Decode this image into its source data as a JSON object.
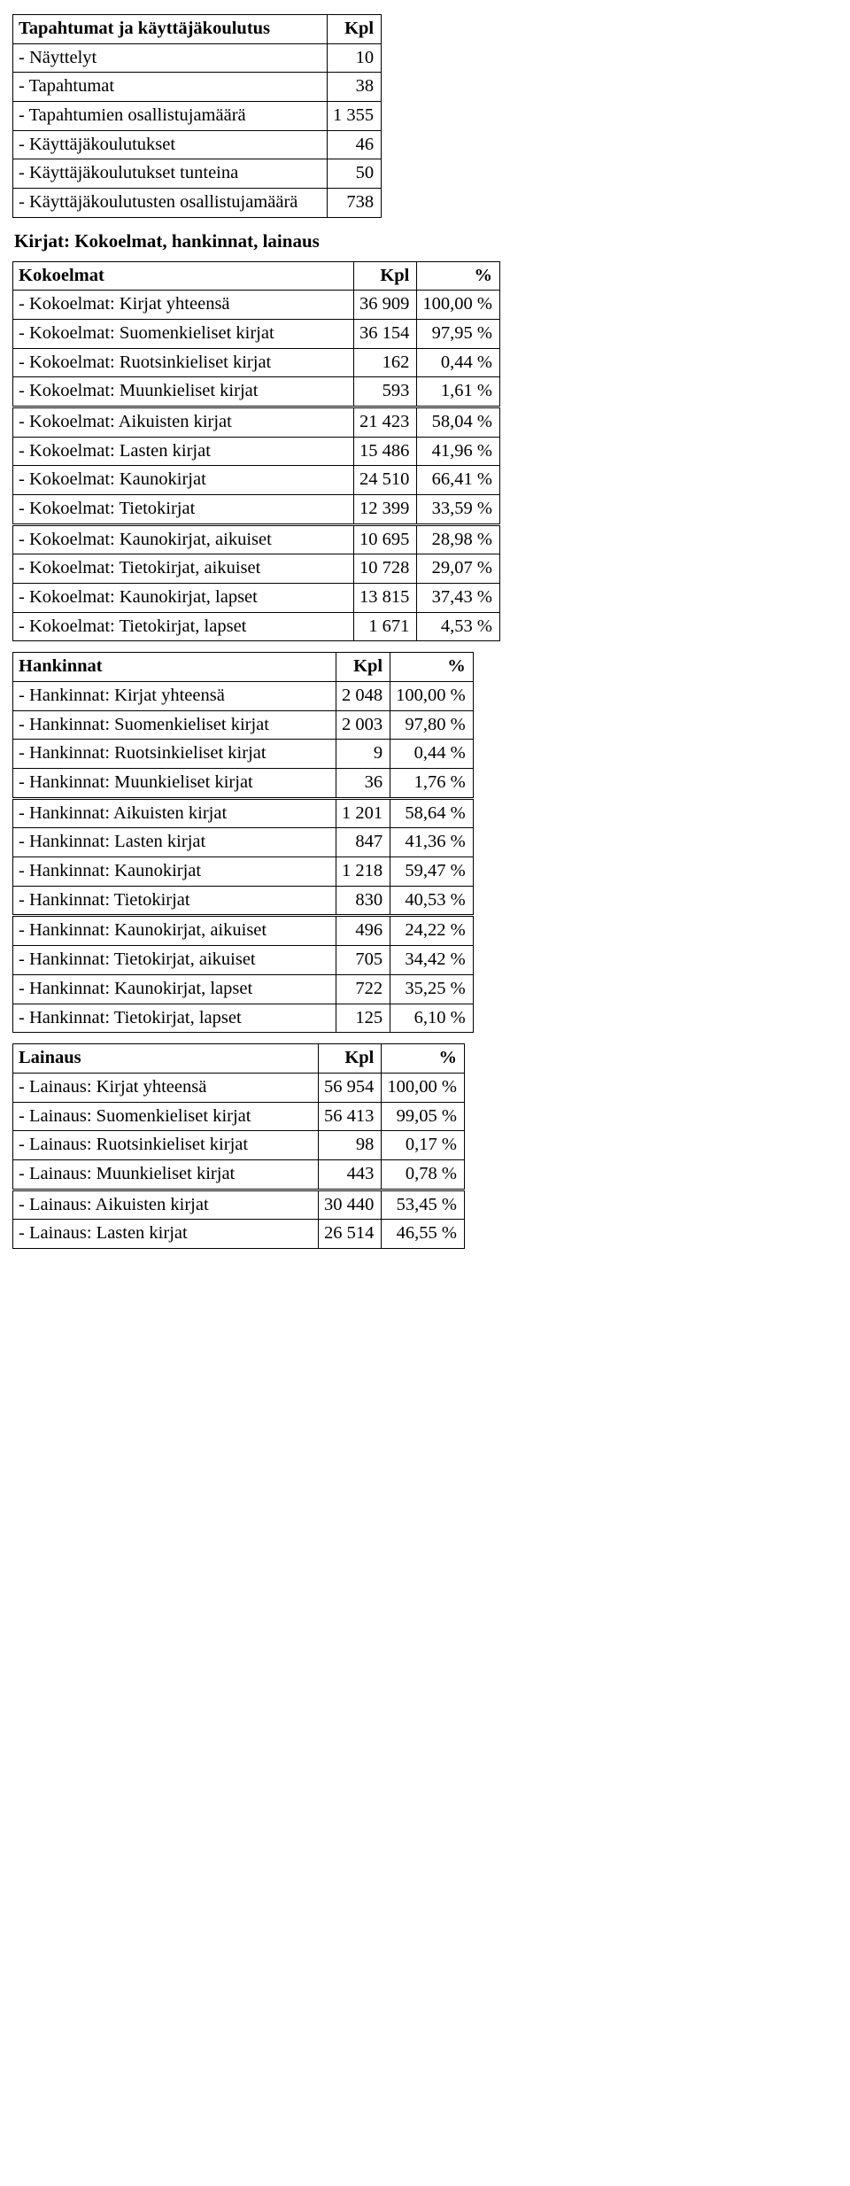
{
  "events": {
    "header": {
      "label": "Tapahtumat ja käyttäjäkoulutus",
      "kpl": "Kpl"
    },
    "rows": [
      {
        "label": "- Näyttelyt",
        "kpl": "10"
      },
      {
        "label": "- Tapahtumat",
        "kpl": "38"
      },
      {
        "label": "- Tapahtumien osallistujamäärä",
        "kpl": "1 355"
      },
      {
        "label": "- Käyttäjäkoulutukset",
        "kpl": "46"
      },
      {
        "label": "- Käyttäjäkoulutukset tunteina",
        "kpl": "50"
      },
      {
        "label": "- Käyttäjäkoulutusten osallistujamäärä",
        "kpl": "738"
      }
    ]
  },
  "section_title": "Kirjat: Kokoelmat, hankinnat, lainaus",
  "kokoelmat": {
    "header": {
      "label": "Kokoelmat",
      "kpl": "Kpl",
      "pct": "%"
    },
    "groups": [
      [
        {
          "label": "- Kokoelmat: Kirjat yhteensä",
          "kpl": "36 909",
          "pct": "100,00 %"
        },
        {
          "label": "- Kokoelmat: Suomenkieliset kirjat",
          "kpl": "36 154",
          "pct": "97,95 %"
        },
        {
          "label": "- Kokoelmat: Ruotsinkieliset kirjat",
          "kpl": "162",
          "pct": "0,44 %"
        },
        {
          "label": "- Kokoelmat: Muunkieliset kirjat",
          "kpl": "593",
          "pct": "1,61 %"
        }
      ],
      [
        {
          "label": "- Kokoelmat: Aikuisten kirjat",
          "kpl": "21 423",
          "pct": "58,04 %"
        },
        {
          "label": "- Kokoelmat: Lasten kirjat",
          "kpl": "15 486",
          "pct": "41,96 %"
        },
        {
          "label": "- Kokoelmat: Kaunokirjat",
          "kpl": "24 510",
          "pct": "66,41 %"
        },
        {
          "label": "- Kokoelmat: Tietokirjat",
          "kpl": "12 399",
          "pct": "33,59 %"
        }
      ],
      [
        {
          "label": "- Kokoelmat: Kaunokirjat, aikuiset",
          "kpl": "10 695",
          "pct": "28,98 %"
        },
        {
          "label": "- Kokoelmat: Tietokirjat, aikuiset",
          "kpl": "10 728",
          "pct": "29,07 %"
        },
        {
          "label": "- Kokoelmat: Kaunokirjat, lapset",
          "kpl": "13 815",
          "pct": "37,43 %"
        },
        {
          "label": "- Kokoelmat: Tietokirjat, lapset",
          "kpl": "1 671",
          "pct": "4,53 %"
        }
      ]
    ]
  },
  "hankinnat": {
    "header": {
      "label": "Hankinnat",
      "kpl": "Kpl",
      "pct": "%"
    },
    "groups": [
      [
        {
          "label": "- Hankinnat: Kirjat yhteensä",
          "kpl": "2 048",
          "pct": "100,00 %"
        },
        {
          "label": "- Hankinnat: Suomenkieliset kirjat",
          "kpl": "2 003",
          "pct": "97,80 %"
        },
        {
          "label": "- Hankinnat: Ruotsinkieliset kirjat",
          "kpl": "9",
          "pct": "0,44 %"
        },
        {
          "label": "- Hankinnat: Muunkieliset kirjat",
          "kpl": "36",
          "pct": "1,76 %"
        }
      ],
      [
        {
          "label": "- Hankinnat: Aikuisten kirjat",
          "kpl": "1 201",
          "pct": "58,64 %"
        },
        {
          "label": "- Hankinnat: Lasten kirjat",
          "kpl": "847",
          "pct": "41,36 %"
        },
        {
          "label": "- Hankinnat: Kaunokirjat",
          "kpl": "1 218",
          "pct": "59,47 %"
        },
        {
          "label": "- Hankinnat: Tietokirjat",
          "kpl": "830",
          "pct": "40,53 %"
        }
      ],
      [
        {
          "label": "- Hankinnat: Kaunokirjat, aikuiset",
          "kpl": "496",
          "pct": "24,22 %"
        },
        {
          "label": "- Hankinnat: Tietokirjat, aikuiset",
          "kpl": "705",
          "pct": "34,42 %"
        },
        {
          "label": "- Hankinnat: Kaunokirjat, lapset",
          "kpl": "722",
          "pct": "35,25 %"
        },
        {
          "label": "- Hankinnat: Tietokirjat, lapset",
          "kpl": "125",
          "pct": "6,10 %"
        }
      ]
    ]
  },
  "lainaus": {
    "header": {
      "label": "Lainaus",
      "kpl": "Kpl",
      "pct": "%"
    },
    "groups": [
      [
        {
          "label": "- Lainaus: Kirjat yhteensä",
          "kpl": "56 954",
          "pct": "100,00 %"
        },
        {
          "label": "- Lainaus: Suomenkieliset kirjat",
          "kpl": "56 413",
          "pct": "99,05 %"
        },
        {
          "label": "- Lainaus: Ruotsinkieliset kirjat",
          "kpl": "98",
          "pct": "0,17 %"
        },
        {
          "label": "- Lainaus: Muunkieliset kirjat",
          "kpl": "443",
          "pct": "0,78 %"
        }
      ],
      [
        {
          "label": "- Lainaus: Aikuisten kirjat",
          "kpl": "30 440",
          "pct": "53,45 %"
        },
        {
          "label": "- Lainaus: Lasten kirjat",
          "kpl": "26 514",
          "pct": "46,55 %"
        }
      ]
    ]
  }
}
